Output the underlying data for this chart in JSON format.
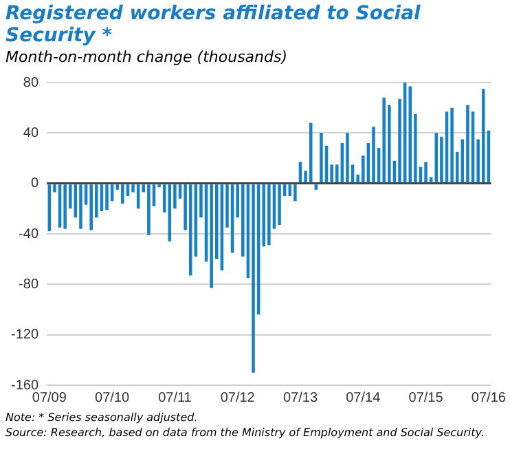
{
  "chart_data": {
    "type": "bar",
    "title": "Registered workers affiliated to Social Security *",
    "subtitle": "Month-on-month change (thousands)",
    "categories": [
      "07/09",
      null,
      null,
      null,
      null,
      null,
      null,
      null,
      null,
      null,
      null,
      null,
      "07/10",
      null,
      null,
      null,
      null,
      null,
      null,
      null,
      null,
      null,
      null,
      null,
      "07/11",
      null,
      null,
      null,
      null,
      null,
      null,
      null,
      null,
      null,
      null,
      null,
      "07/12",
      null,
      null,
      null,
      null,
      null,
      null,
      null,
      null,
      null,
      null,
      null,
      "07/13",
      null,
      null,
      null,
      null,
      null,
      null,
      null,
      null,
      null,
      null,
      null,
      "07/14",
      null,
      null,
      null,
      null,
      null,
      null,
      null,
      null,
      null,
      null,
      null,
      "07/15",
      null,
      null,
      null,
      null,
      null,
      null,
      null,
      null,
      null,
      null,
      null,
      "07/16"
    ],
    "values": [
      -38,
      -7,
      -35,
      -36,
      -20,
      -27,
      -36,
      -17,
      -37,
      -27,
      -22,
      -21,
      -14,
      -5,
      -16,
      -10,
      -7,
      -20,
      -7,
      -41,
      -18,
      -3,
      -23,
      -46,
      -20,
      -12,
      -37,
      -73,
      -58,
      -27,
      -62,
      -83,
      -60,
      -69,
      -35,
      -55,
      -27,
      -58,
      -75,
      -150,
      -104,
      -50,
      -49,
      -36,
      -33,
      -10,
      -10,
      -14,
      17,
      10,
      48,
      -5,
      40,
      30,
      15,
      15,
      32,
      40,
      15,
      7,
      22,
      32,
      45,
      28,
      68,
      62,
      18,
      67,
      80,
      77,
      55,
      13,
      17,
      5,
      40,
      37,
      57,
      60,
      25,
      35,
      62,
      57,
      35,
      75,
      42
    ],
    "color": "#1a80c4",
    "ylim": [
      -160,
      80
    ],
    "yticks": [
      -160,
      -120,
      -80,
      -40,
      0,
      40,
      80
    ],
    "grid": "y",
    "annotations": [
      "Note: * Series seasonally adjusted.",
      "Source: Research, based on data from the Ministry of Employment and Social Security."
    ]
  }
}
